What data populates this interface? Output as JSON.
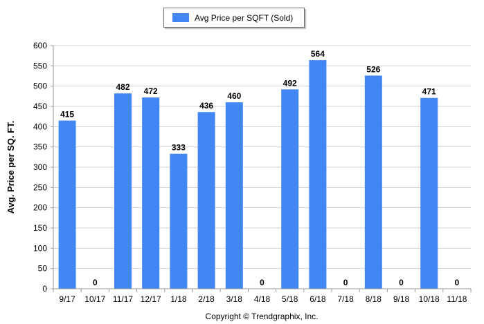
{
  "chart_data": {
    "type": "bar",
    "categories": [
      "9/17",
      "10/17",
      "11/17",
      "12/17",
      "1/18",
      "2/18",
      "3/18",
      "4/18",
      "5/18",
      "6/18",
      "7/18",
      "8/18",
      "9/18",
      "10/18",
      "11/18"
    ],
    "series": [
      {
        "name": "Avg Price per SQFT (Sold)",
        "values": [
          415,
          0,
          482,
          472,
          333,
          436,
          460,
          0,
          492,
          564,
          0,
          526,
          0,
          471,
          0
        ]
      }
    ],
    "ylabel": "Avg. Price per SQ. FT.",
    "xlabel": "",
    "ylim": [
      0,
      600
    ],
    "yticks": [
      0,
      50,
      100,
      150,
      200,
      250,
      300,
      350,
      400,
      450,
      500,
      550,
      600
    ],
    "grid": true,
    "legend_position": "top-center",
    "bar_color": "#4286f4"
  },
  "footer": {
    "copyright": "Copyright © Trendgraphix, Inc."
  }
}
